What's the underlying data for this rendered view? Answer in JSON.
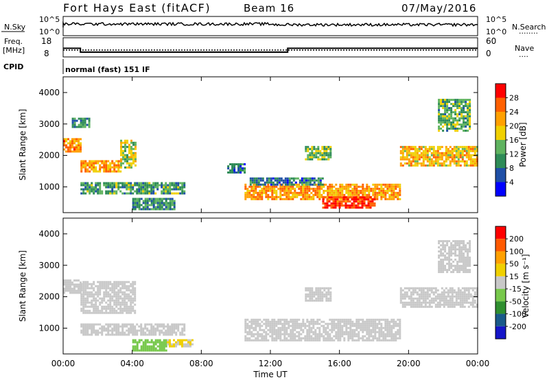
{
  "header": {
    "station": "Fort Hays East (fitACF)",
    "beam": "Beam 16",
    "date": "07/May/2016"
  },
  "sky_panel": {
    "left_label": "N.Sky",
    "left_ticks": [
      "10^5",
      "10^0"
    ],
    "right_ticks": [
      "10^5",
      "10^0"
    ],
    "right_label": "N.Search",
    "right_label_marker": "........"
  },
  "freq_panel": {
    "left_label_1": "Freq.",
    "left_label_2": "[MHz]",
    "left_ticks": [
      "18",
      "8"
    ],
    "right_ticks": [
      "60",
      "0"
    ],
    "right_label": "Nave",
    "right_label_marker": "....",
    "freq_profile": [
      {
        "start": 0,
        "end": 1,
        "mhz": 12.5
      },
      {
        "start": 1,
        "end": 13,
        "mhz": 10.5
      },
      {
        "start": 13,
        "end": 24,
        "mhz": 12.5
      }
    ]
  },
  "cpid": {
    "label": "CPID",
    "text": "normal (fast) 151 IF"
  },
  "x_axis": {
    "title": "Time UT",
    "ticks": [
      "00:00",
      "04:00",
      "08:00",
      "12:00",
      "16:00",
      "20:00",
      "00:00"
    ]
  },
  "panels": {
    "power": {
      "ylabel": "Slant Range [km]",
      "yticks": [
        "1000",
        "2000",
        "3000",
        "4000"
      ],
      "colorbar_label": "Power [dB]",
      "colorbar_ticks": [
        "28",
        "24",
        "20",
        "16",
        "12",
        "8",
        "4"
      ]
    },
    "velocity": {
      "ylabel": "Slant Range [km]",
      "yticks": [
        "1000",
        "2000",
        "3000",
        "4000"
      ],
      "colorbar_label": "Velocity [m s⁻¹]",
      "colorbar_ticks": [
        "200",
        "100",
        "50",
        "15",
        "-15",
        "-50",
        "-100",
        "-200"
      ]
    }
  },
  "colors": {
    "power_scale": [
      "#0000ff",
      "#1f4fa6",
      "#2e8b57",
      "#5fb35f",
      "#f0d000",
      "#ffa000",
      "#ff6000",
      "#ff0000"
    ],
    "velocity_scale": [
      "#1515c8",
      "#1a5a8a",
      "#2f8f2f",
      "#77c84b",
      "#c8c8c8",
      "#f0d000",
      "#ffa000",
      "#ff5a00",
      "#ff0000"
    ]
  },
  "chart_data": [
    {
      "type": "heatmap",
      "title": "Power",
      "x_unit": "hours UT",
      "xlim": [
        0,
        24
      ],
      "ylim": [
        180,
        4500
      ],
      "clim": [
        0,
        30
      ],
      "regions": [
        {
          "t0": 0.0,
          "t1": 1.0,
          "r0": 2100,
          "r1": 2550,
          "val": 22
        },
        {
          "t0": 1.0,
          "t1": 3.3,
          "r0": 1500,
          "r1": 1850,
          "val": 21
        },
        {
          "t0": 3.3,
          "t1": 4.2,
          "r0": 1600,
          "r1": 2500,
          "val": 15
        },
        {
          "t0": 1.0,
          "t1": 7.0,
          "r0": 820,
          "r1": 1150,
          "val": 11
        },
        {
          "t0": 4.0,
          "t1": 6.5,
          "r0": 300,
          "r1": 650,
          "val": 10
        },
        {
          "t0": 9.5,
          "t1": 10.5,
          "r0": 1450,
          "r1": 1750,
          "val": 7
        },
        {
          "t0": 10.5,
          "t1": 19.5,
          "r0": 600,
          "r1": 1100,
          "val": 21
        },
        {
          "t0": 15.0,
          "t1": 18.0,
          "r0": 350,
          "r1": 700,
          "val": 27
        },
        {
          "t0": 10.8,
          "t1": 15.0,
          "r0": 1100,
          "r1": 1300,
          "val": 8
        },
        {
          "t0": 19.5,
          "t1": 24.0,
          "r0": 1700,
          "r1": 2300,
          "val": 19
        },
        {
          "t0": 14.0,
          "t1": 15.5,
          "r0": 1900,
          "r1": 2300,
          "val": 13
        },
        {
          "t0": 21.7,
          "t1": 23.5,
          "r0": 2800,
          "r1": 3800,
          "val": 12
        },
        {
          "t0": 0.5,
          "t1": 1.5,
          "r0": 2900,
          "r1": 3200,
          "val": 10
        }
      ]
    },
    {
      "type": "heatmap",
      "title": "Velocity",
      "x_unit": "hours UT",
      "xlim": [
        0,
        24
      ],
      "ylim": [
        180,
        4500
      ],
      "clim": [
        -250,
        250
      ],
      "regions": [
        {
          "t0": 0.0,
          "t1": 1.0,
          "r0": 2100,
          "r1": 2550,
          "val": 0
        },
        {
          "t0": 1.0,
          "t1": 4.2,
          "r0": 1500,
          "r1": 2500,
          "val": 0
        },
        {
          "t0": 1.0,
          "t1": 7.0,
          "r0": 820,
          "r1": 1150,
          "val": 0
        },
        {
          "t0": 4.0,
          "t1": 6.0,
          "r0": 300,
          "r1": 650,
          "val": -60
        },
        {
          "t0": 6.0,
          "t1": 7.5,
          "r0": 400,
          "r1": 650,
          "val": 30
        },
        {
          "t0": 10.5,
          "t1": 19.5,
          "r0": 600,
          "r1": 1300,
          "val": 0
        },
        {
          "t0": 19.5,
          "t1": 24.0,
          "r0": 1700,
          "r1": 2300,
          "val": 0
        },
        {
          "t0": 14.0,
          "t1": 15.5,
          "r0": 1900,
          "r1": 2300,
          "val": 0
        },
        {
          "t0": 21.7,
          "t1": 23.5,
          "r0": 2800,
          "r1": 3800,
          "val": 0
        }
      ]
    }
  ]
}
